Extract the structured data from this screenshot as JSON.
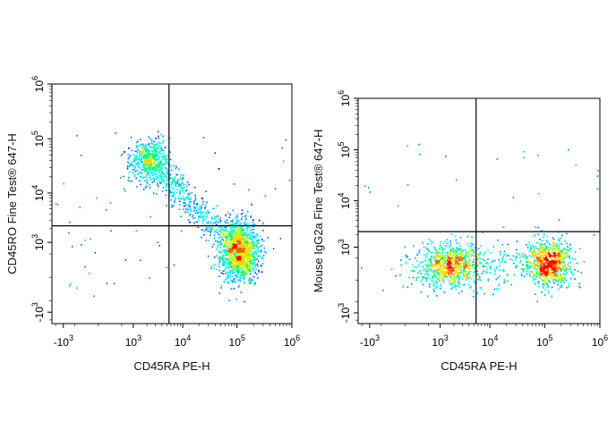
{
  "chart_data": [
    {
      "type": "scatter",
      "subtype": "flow-cytometry density dot plot",
      "title": "",
      "xlabel": "CD45RA PE-H",
      "ylabel": "CD45RO Fine Test® 647-H",
      "x_scale": "biexponential",
      "y_scale": "biexponential",
      "x_ticks": [
        {
          "value": -1000,
          "base": "-10",
          "exp": "3"
        },
        {
          "value": 1000,
          "base": "10",
          "exp": "3"
        },
        {
          "value": 10000,
          "base": "10",
          "exp": "4"
        },
        {
          "value": 100000,
          "base": "10",
          "exp": "5"
        },
        {
          "value": 1000000,
          "base": "10",
          "exp": "6"
        }
      ],
      "y_ticks": [
        {
          "value": -1000,
          "base": "-10",
          "exp": "3"
        },
        {
          "value": 1000,
          "base": "10",
          "exp": "3"
        },
        {
          "value": 10000,
          "base": "10",
          "exp": "4"
        },
        {
          "value": 100000,
          "base": "10",
          "exp": "5"
        },
        {
          "value": 1000000,
          "base": "10",
          "exp": "6"
        }
      ],
      "gate": {
        "x": 5500,
        "y": 2300
      },
      "populations": [
        {
          "name_hidden": "CD45RO+CD45RA-",
          "center": [
            2000,
            40000
          ],
          "share": 0.22
        },
        {
          "name_hidden": "transition",
          "center": [
            12000,
            6000
          ],
          "share": 0.18
        },
        {
          "name_hidden": "CD45RA+",
          "center": [
            110000,
            600
          ],
          "share": 0.6
        }
      ],
      "grid": false
    },
    {
      "type": "scatter",
      "subtype": "flow-cytometry density dot plot",
      "title": "",
      "xlabel": "CD45RA PE-H",
      "ylabel": "Mouse IgG2a Fine Test® 647-H",
      "x_scale": "biexponential",
      "y_scale": "biexponential",
      "x_ticks": [
        {
          "value": -1000,
          "base": "-10",
          "exp": "3"
        },
        {
          "value": 1000,
          "base": "10",
          "exp": "3"
        },
        {
          "value": 10000,
          "base": "10",
          "exp": "4"
        },
        {
          "value": 100000,
          "base": "10",
          "exp": "5"
        },
        {
          "value": 1000000,
          "base": "10",
          "exp": "6"
        }
      ],
      "y_ticks": [
        {
          "value": -1000,
          "base": "-10",
          "exp": "3"
        },
        {
          "value": 1000,
          "base": "10",
          "exp": "3"
        },
        {
          "value": 10000,
          "base": "10",
          "exp": "4"
        },
        {
          "value": 100000,
          "base": "10",
          "exp": "5"
        },
        {
          "value": 1000000,
          "base": "10",
          "exp": "6"
        }
      ],
      "gate": {
        "x": 5500,
        "y": 2300
      },
      "populations": [
        {
          "name_hidden": "RA-",
          "center": [
            1500,
            300
          ],
          "share": 0.4
        },
        {
          "name_hidden": "RA+",
          "center": [
            120000,
            350
          ],
          "share": 0.6
        }
      ],
      "grid": false
    }
  ],
  "colors": {
    "density": [
      "#0000ff",
      "#00a0ff",
      "#00ffff",
      "#00ff80",
      "#c0ff00",
      "#ffd000",
      "#ff6000",
      "#ff0000"
    ],
    "axis": "#000000",
    "gate_line": "#000000"
  }
}
